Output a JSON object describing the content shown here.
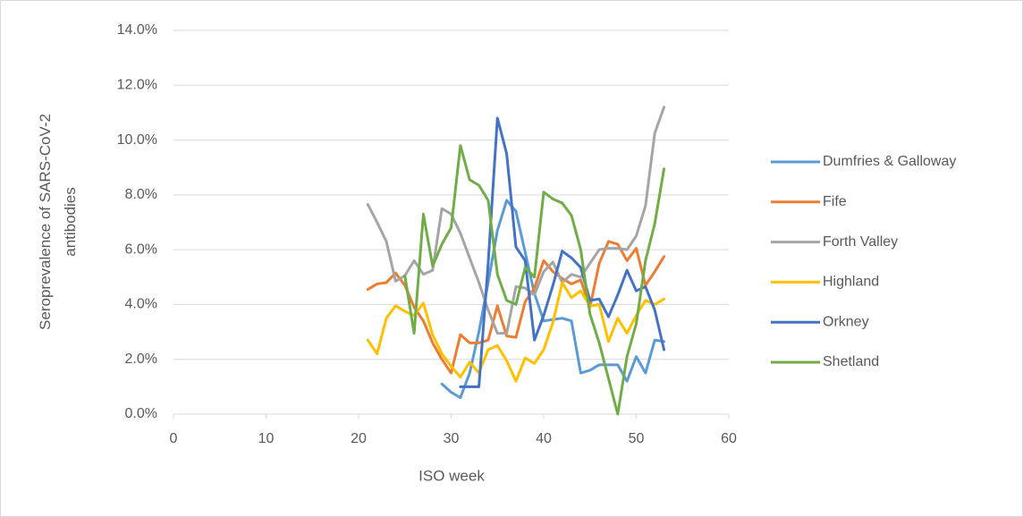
{
  "chart_data": {
    "type": "line",
    "xlabel": "ISO week",
    "ylabel": "Seroprevalence of SARS-CoV-2 antibodies",
    "x": [
      21,
      22,
      23,
      24,
      25,
      26,
      27,
      28,
      29,
      30,
      31,
      32,
      33,
      34,
      35,
      36,
      37,
      38,
      39,
      40,
      41,
      42,
      43,
      44,
      45,
      46,
      47,
      48,
      49,
      50,
      51,
      52,
      53
    ],
    "xlim": [
      0,
      60
    ],
    "xticks": [
      0,
      10,
      20,
      30,
      40,
      50,
      60
    ],
    "ylim": [
      0,
      14
    ],
    "yticks": [
      {
        "value": 0,
        "label": "0.0%"
      },
      {
        "value": 2,
        "label": "2.0%"
      },
      {
        "value": 4,
        "label": "4.0%"
      },
      {
        "value": 6,
        "label": "6.0%"
      },
      {
        "value": 8,
        "label": "8.0%"
      },
      {
        "value": 10,
        "label": "10.0%"
      },
      {
        "value": 12,
        "label": "12.0%"
      },
      {
        "value": 14,
        "label": "14.0%"
      }
    ],
    "grid": true,
    "legend": "right",
    "series": [
      {
        "name": "Dumfries & Galloway",
        "color": "#5b9bd5",
        "values": [
          null,
          null,
          null,
          null,
          null,
          null,
          null,
          null,
          1.1,
          0.8,
          0.6,
          1.5,
          3.0,
          4.8,
          6.7,
          7.8,
          7.4,
          5.9,
          4.4,
          3.4,
          3.45,
          3.5,
          3.4,
          1.5,
          1.6,
          1.8,
          1.8,
          1.8,
          1.2,
          2.1,
          1.5,
          2.7,
          2.65
        ]
      },
      {
        "name": "Fife",
        "color": "#ed7d31",
        "values": [
          4.55,
          4.75,
          4.8,
          5.15,
          4.7,
          3.9,
          3.4,
          2.6,
          2.0,
          1.5,
          2.9,
          2.6,
          2.6,
          2.7,
          3.95,
          2.85,
          2.8,
          4.1,
          4.6,
          5.6,
          5.2,
          4.95,
          4.75,
          4.9,
          3.9,
          5.5,
          6.3,
          6.2,
          5.6,
          6.05,
          4.7,
          5.2,
          5.75
        ]
      },
      {
        "name": "Forth Valley",
        "color": "#a5a5a5",
        "values": [
          7.65,
          7.0,
          6.3,
          4.85,
          5.05,
          5.6,
          5.1,
          5.25,
          7.5,
          7.3,
          6.6,
          5.7,
          4.8,
          3.8,
          2.95,
          2.95,
          4.65,
          4.6,
          4.35,
          5.2,
          5.55,
          4.8,
          5.1,
          5.0,
          5.5,
          6.0,
          6.05,
          6.05,
          6.0,
          6.5,
          7.6,
          10.25,
          11.2
        ]
      },
      {
        "name": "Highland",
        "color": "#ffc000",
        "values": [
          2.7,
          2.2,
          3.5,
          3.95,
          3.75,
          3.6,
          4.05,
          2.9,
          2.2,
          1.75,
          1.35,
          1.9,
          1.5,
          2.35,
          2.5,
          1.95,
          1.2,
          2.05,
          1.85,
          2.35,
          3.35,
          4.8,
          4.25,
          4.5,
          3.95,
          4.0,
          2.65,
          3.5,
          2.95,
          3.6,
          4.15,
          4.0,
          4.2
        ]
      },
      {
        "name": "Orkney",
        "color": "#4472c4",
        "values": [
          null,
          null,
          null,
          null,
          null,
          null,
          null,
          null,
          null,
          null,
          1.0,
          1.0,
          1.0,
          5.5,
          10.8,
          9.5,
          6.1,
          5.6,
          2.7,
          3.6,
          4.7,
          5.95,
          5.7,
          5.35,
          4.15,
          4.2,
          3.55,
          4.35,
          5.25,
          4.5,
          4.65,
          3.8,
          2.35
        ]
      },
      {
        "name": "Shetland",
        "color": "#70ad47",
        "values": [
          null,
          null,
          null,
          null,
          5.05,
          2.95,
          7.3,
          5.4,
          6.2,
          6.8,
          9.8,
          8.55,
          8.35,
          7.8,
          5.1,
          4.15,
          4.0,
          5.35,
          5.0,
          8.1,
          7.85,
          7.7,
          7.25,
          6.0,
          3.65,
          2.6,
          1.3,
          0.0,
          2.1,
          3.3,
          5.6,
          6.95,
          8.95
        ]
      }
    ]
  }
}
